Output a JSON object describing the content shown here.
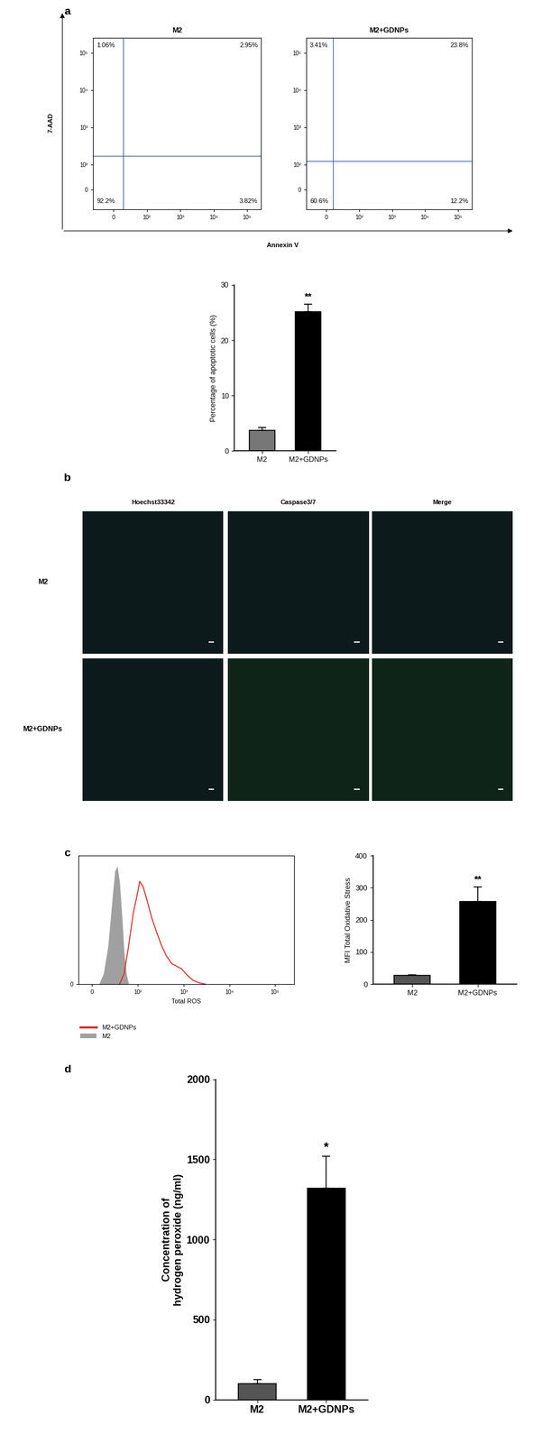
{
  "panel_labels": [
    "a",
    "b",
    "c",
    "d"
  ],
  "flow_axes": {
    "xlabel": "Annexin V",
    "ylabel": "7-AAD"
  },
  "chart_data": [
    {
      "type": "flow_cytometry",
      "title": "M2",
      "log": true,
      "xlim": [
        -60,
        262144
      ],
      "ylim": [
        -80,
        262144
      ],
      "xticks": [
        0,
        {
          "value": 100,
          "label": "10²"
        },
        {
          "value": 1000,
          "label": "10³"
        },
        {
          "value": 10000,
          "label": "10⁴"
        },
        {
          "value": 100000,
          "label": "10⁵"
        }
      ],
      "yticks": [
        0,
        {
          "value": 100,
          "label": "10²"
        },
        {
          "value": 1000,
          "label": "10³"
        },
        {
          "value": 10000,
          "label": "10⁴"
        },
        {
          "value": 100000,
          "label": "10⁵"
        }
      ],
      "gate": [
        30,
        170
      ],
      "quadrants": [
        "1.06%",
        "2.95%",
        "92.2%",
        "3.82%"
      ]
    },
    {
      "type": "flow_cytometry",
      "title": "M2+GDNPs",
      "log": true,
      "xlim": [
        -60,
        262144
      ],
      "ylim": [
        -80,
        262144
      ],
      "xticks": [
        0,
        {
          "value": 100,
          "label": "10²"
        },
        {
          "value": 1000,
          "label": "10³"
        },
        {
          "value": 10000,
          "label": "10⁴"
        },
        {
          "value": 100000,
          "label": "10⁵"
        }
      ],
      "yticks": [
        0,
        {
          "value": 100,
          "label": "10²"
        },
        {
          "value": 1000,
          "label": "10³"
        },
        {
          "value": 10000,
          "label": "10⁴"
        },
        {
          "value": 100000,
          "label": "10⁵"
        }
      ],
      "gate": [
        20,
        125
      ],
      "quadrants": [
        "3.41%",
        "23.8%",
        "60.6%",
        "12.2%"
      ]
    },
    {
      "type": "bar",
      "ylabel": "Percentage of apoptotic cells (%)",
      "categories": [
        "M2",
        "M2+GDNPs"
      ],
      "values": [
        3.7,
        25.2
      ],
      "errors": [
        0.5,
        1.3
      ],
      "colors": [
        "#777777",
        "#000000"
      ],
      "ylim": [
        0,
        30
      ],
      "yticks": [
        0,
        10,
        20,
        30
      ],
      "annotations": [
        {
          "category": "M2+GDNPs",
          "text": "**"
        }
      ]
    },
    {
      "type": "line",
      "xlabel": "Total ROS",
      "log": true,
      "xlim": [
        -30,
        262144
      ],
      "ylim": [
        0,
        100
      ],
      "xticks": [
        0,
        {
          "value": 100,
          "label": "10²"
        },
        {
          "value": 1000,
          "label": "10³"
        },
        {
          "value": 10000,
          "label": "10⁴"
        },
        {
          "value": 100000,
          "label": "10⁵"
        }
      ],
      "yticks": [
        0
      ],
      "series": [
        {
          "name": "M2+GDNPs",
          "type": "line",
          "color": "#e0201b",
          "x": [
            60,
            70,
            80,
            90,
            100,
            110,
            130,
            160,
            200,
            260,
            330,
            420,
            550,
            700,
            900,
            1200,
            1600,
            2200,
            3000
          ],
          "values": [
            0,
            8,
            30,
            55,
            72,
            80,
            76,
            65,
            52,
            40,
            30,
            22,
            16,
            14,
            12,
            7,
            3,
            1,
            0
          ]
        },
        {
          "name": "M2",
          "type": "area",
          "color": "#a0a0a0",
          "x": [
            15,
            25,
            35,
            45,
            50,
            55,
            60,
            65,
            70,
            75,
            80
          ],
          "values": [
            0,
            8,
            30,
            70,
            88,
            92,
            80,
            55,
            25,
            8,
            0
          ]
        }
      ]
    },
    {
      "type": "bar",
      "ylabel": "MFI Total Oxidative Stress",
      "categories": [
        "M2",
        "M2+GDNPs"
      ],
      "values": [
        27,
        258
      ],
      "errors": [
        2,
        45
      ],
      "colors": [
        "#555555",
        "#000000"
      ],
      "ylim": [
        0,
        400
      ],
      "yticks": [
        0,
        100,
        200,
        300,
        400
      ],
      "annotations": [
        {
          "category": "M2+GDNPs",
          "text": "**"
        }
      ]
    },
    {
      "type": "bar",
      "ylabel": "Concentration of\nhydrogen peroxide (ng/ml)",
      "categories": [
        "M2",
        "M2+GDNPs"
      ],
      "values": [
        100,
        1320
      ],
      "errors": [
        25,
        200
      ],
      "colors": [
        "#555555",
        "#000000"
      ],
      "ylim": [
        0,
        2000
      ],
      "yticks": [
        0,
        500,
        1000,
        1500,
        2000
      ],
      "annotations": [
        {
          "category": "M2+GDNPs",
          "text": "*"
        }
      ]
    }
  ],
  "image_panel": {
    "columns": [
      "Hoechst33342",
      "Caspase3/7",
      "Merge"
    ],
    "rows": [
      "M2",
      "M2+GDNPs"
    ]
  }
}
